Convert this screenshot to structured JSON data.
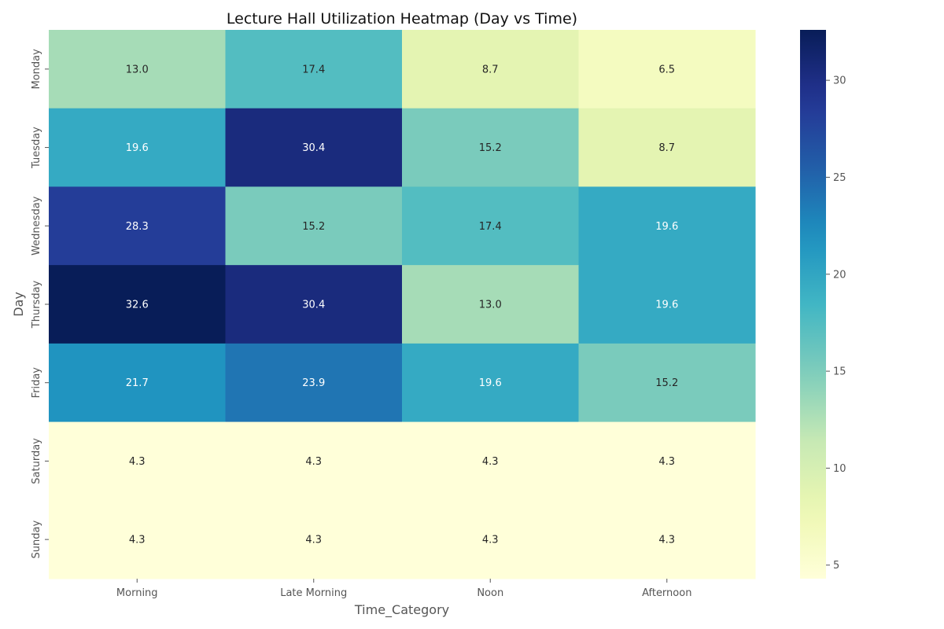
{
  "chart_data": {
    "type": "heatmap",
    "title": "Lecture Hall Utilization Heatmap (Day vs Time)",
    "xlabel": "Time_Category",
    "ylabel": "Day",
    "x_categories": [
      "Morning",
      "Late Morning",
      "Noon",
      "Afternoon"
    ],
    "y_categories": [
      "Monday",
      "Tuesday",
      "Wednesday",
      "Thursday",
      "Friday",
      "Saturday",
      "Sunday"
    ],
    "values": [
      [
        13.0,
        17.4,
        8.7,
        6.5
      ],
      [
        19.6,
        30.4,
        15.2,
        8.7
      ],
      [
        28.3,
        15.2,
        17.4,
        19.6
      ],
      [
        32.6,
        30.4,
        13.0,
        19.6
      ],
      [
        21.7,
        23.9,
        19.6,
        15.2
      ],
      [
        4.3,
        4.3,
        4.3,
        4.3
      ],
      [
        4.3,
        4.3,
        4.3,
        4.3
      ]
    ],
    "value_format": "0.1f",
    "colormap": "YlGnBu",
    "colorbar": {
      "min": 4.3,
      "max": 32.6,
      "ticks": [
        5,
        10,
        15,
        20,
        25,
        30
      ]
    },
    "grid": false,
    "legend": "colorbar-right"
  }
}
